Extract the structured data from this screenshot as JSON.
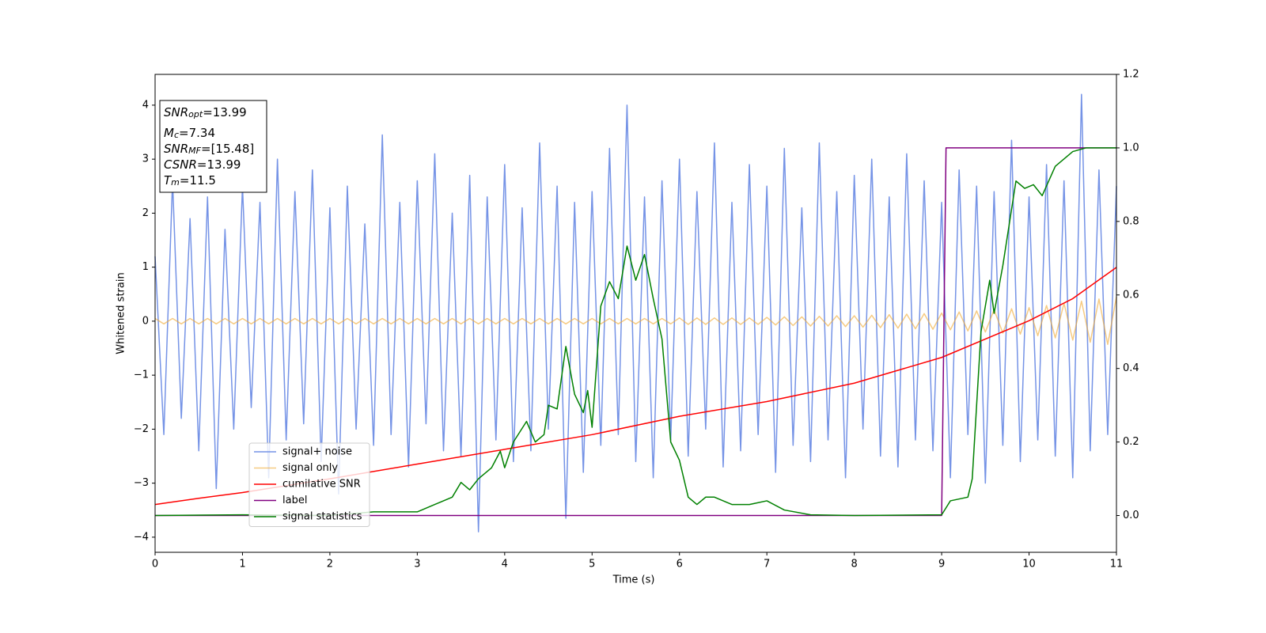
{
  "chart_data": {
    "type": "line",
    "xlabel": "Time (s)",
    "ylabel": "Whitened strain",
    "xlim": [
      0,
      11
    ],
    "ylim": [
      -4.28,
      4.57
    ],
    "y2lim": [
      -0.1,
      1.2
    ],
    "xticks": [
      0,
      1,
      2,
      3,
      4,
      5,
      6,
      7,
      8,
      9,
      10,
      11
    ],
    "yticks": [
      {
        "value": -4,
        "label": "−4"
      },
      {
        "value": -3,
        "label": "−3"
      },
      {
        "value": -2,
        "label": "−2"
      },
      {
        "value": -1,
        "label": "−1"
      },
      0,
      1,
      2,
      3,
      4
    ],
    "y2ticks": [
      {
        "value": 0,
        "label": "0.0"
      },
      0.2,
      0.4,
      0.6,
      0.8,
      {
        "value": 1,
        "label": "1.0"
      },
      1.2
    ],
    "legend": "lower left",
    "annotations": [
      {
        "symbol": "SNR",
        "sub": "opt",
        "text": "=13.99"
      },
      {
        "symbol": "M",
        "sub": "c",
        "text": "=7.34"
      },
      {
        "symbol": "SNR",
        "sub": "MF",
        "text": "=[15.48]"
      },
      {
        "symbol": "CSNR",
        "text": "=13.99"
      },
      {
        "symbol": "T",
        "sub": "m",
        "text": "=11.5"
      }
    ],
    "series": [
      {
        "name": "signal+ noise",
        "color": "#7593e6",
        "x": [
          0,
          0.1,
          0.2,
          0.3,
          0.4,
          0.5,
          0.6,
          0.7,
          0.8,
          0.9,
          1,
          1.1,
          1.2,
          1.3,
          1.4,
          1.5,
          1.6,
          1.7,
          1.8,
          1.9,
          2,
          2.1,
          2.2,
          2.3,
          2.4,
          2.5,
          2.6,
          2.7,
          2.8,
          2.9,
          3,
          3.1,
          3.2,
          3.3,
          3.4,
          3.5,
          3.6,
          3.7,
          3.8,
          3.9,
          4,
          4.1,
          4.2,
          4.3,
          4.4,
          4.5,
          4.6,
          4.7,
          4.8,
          4.9,
          5,
          5.1,
          5.2,
          5.3,
          5.4,
          5.5,
          5.6,
          5.7,
          5.8,
          5.9,
          6,
          6.1,
          6.2,
          6.3,
          6.4,
          6.5,
          6.6,
          6.7,
          6.8,
          6.9,
          7,
          7.1,
          7.2,
          7.3,
          7.4,
          7.5,
          7.6,
          7.7,
          7.8,
          7.9,
          8,
          8.1,
          8.2,
          8.3,
          8.4,
          8.5,
          8.6,
          8.7,
          8.8,
          8.9,
          9,
          9.1,
          9.2,
          9.3,
          9.4,
          9.5,
          9.6,
          9.7,
          9.8,
          9.9,
          10,
          10.1,
          10.2,
          10.3,
          10.4,
          10.5,
          10.6,
          10.7,
          10.8,
          10.9,
          11
        ],
        "values": [
          1.2,
          -2.1,
          2.6,
          -1.8,
          1.9,
          -2.4,
          2.3,
          -3.1,
          1.7,
          -2.0,
          2.5,
          -1.6,
          2.2,
          -2.9,
          3.0,
          -2.2,
          2.4,
          -1.9,
          2.8,
          -2.6,
          2.1,
          -3.2,
          2.5,
          -2.0,
          1.8,
          -2.3,
          3.45,
          -2.1,
          2.2,
          -2.7,
          2.6,
          -1.9,
          3.1,
          -2.4,
          2.0,
          -2.5,
          2.7,
          -3.9,
          2.3,
          -2.2,
          2.9,
          -2.6,
          2.1,
          -2.4,
          3.3,
          -2.0,
          2.5,
          -3.65,
          2.2,
          -2.8,
          2.4,
          -2.3,
          3.2,
          -2.1,
          4.0,
          -2.6,
          2.3,
          -2.9,
          2.6,
          -2.2,
          3.0,
          -2.5,
          2.4,
          -2.0,
          3.3,
          -2.7,
          2.2,
          -2.4,
          2.9,
          -2.1,
          2.5,
          -2.8,
          3.2,
          -2.3,
          2.1,
          -2.6,
          3.3,
          -2.2,
          2.4,
          -2.9,
          2.7,
          -2.0,
          3.0,
          -2.5,
          2.3,
          -2.7,
          3.1,
          -2.2,
          2.6,
          -2.4,
          2.2,
          -2.9,
          2.8,
          -2.1,
          2.5,
          -3.0,
          2.4,
          -2.3,
          3.35,
          -2.6,
          2.3,
          -2.2,
          2.9,
          -2.5,
          2.6,
          -2.9,
          4.2,
          -2.4,
          2.8,
          -2.1,
          2.5
        ]
      },
      {
        "name": "signal only",
        "color": "#f0a830",
        "x": [
          0,
          0.1,
          0.2,
          0.3,
          0.4,
          0.5,
          0.6,
          0.7,
          0.8,
          0.9,
          1,
          1.1,
          1.2,
          1.3,
          1.4,
          1.5,
          1.6,
          1.7,
          1.8,
          1.9,
          2,
          2.1,
          2.2,
          2.3,
          2.4,
          2.5,
          2.6,
          2.7,
          2.8,
          2.9,
          3,
          3.1,
          3.2,
          3.3,
          3.4,
          3.5,
          3.6,
          3.7,
          3.8,
          3.9,
          4,
          4.1,
          4.2,
          4.3,
          4.4,
          4.5,
          4.6,
          4.7,
          4.8,
          4.9,
          5,
          5.1,
          5.2,
          5.3,
          5.4,
          5.5,
          5.6,
          5.7,
          5.8,
          5.9,
          6,
          6.1,
          6.2,
          6.3,
          6.4,
          6.5,
          6.6,
          6.7,
          6.8,
          6.9,
          7,
          7.1,
          7.2,
          7.3,
          7.4,
          7.5,
          7.6,
          7.7,
          7.8,
          7.9,
          8,
          8.1,
          8.2,
          8.3,
          8.4,
          8.5,
          8.6,
          8.7,
          8.8,
          8.9,
          9,
          9.1,
          9.2,
          9.3,
          9.4,
          9.5,
          9.6,
          9.7,
          9.8,
          9.9,
          10,
          10.1,
          10.2,
          10.3,
          10.4,
          10.5,
          10.6,
          10.7,
          10.8,
          10.9,
          11
        ],
        "values": [
          0.05,
          -0.05,
          0.05,
          -0.05,
          0.05,
          -0.05,
          0.05,
          -0.05,
          0.05,
          -0.05,
          0.05,
          -0.05,
          0.05,
          -0.05,
          0.05,
          -0.05,
          0.05,
          -0.05,
          0.05,
          -0.05,
          0.05,
          -0.05,
          0.05,
          -0.05,
          0.05,
          -0.05,
          0.05,
          -0.05,
          0.05,
          -0.05,
          0.05,
          -0.05,
          0.05,
          -0.05,
          0.05,
          -0.05,
          0.05,
          -0.05,
          0.05,
          -0.05,
          0.05,
          -0.05,
          0.05,
          -0.05,
          0.05,
          -0.05,
          0.05,
          -0.05,
          0.05,
          -0.05,
          0.05,
          -0.05,
          0.05,
          -0.05,
          0.05,
          -0.05,
          0.05,
          -0.05,
          0.05,
          -0.05,
          0.06,
          -0.06,
          0.06,
          -0.06,
          0.06,
          -0.06,
          0.06,
          -0.06,
          0.06,
          -0.06,
          0.07,
          -0.07,
          0.08,
          -0.08,
          0.08,
          -0.09,
          0.09,
          -0.09,
          0.1,
          -0.1,
          0.1,
          -0.11,
          0.11,
          -0.12,
          0.12,
          -0.13,
          0.13,
          -0.14,
          0.14,
          -0.15,
          0.15,
          -0.16,
          0.17,
          -0.18,
          0.19,
          -0.2,
          0.21,
          -0.22,
          0.23,
          -0.24,
          0.25,
          -0.27,
          0.29,
          -0.31,
          0.33,
          -0.35,
          0.37,
          -0.39,
          0.41,
          -0.43,
          0.45
        ]
      },
      {
        "name": "cumilative SNR",
        "color": "#ff0000",
        "axis": "y2",
        "x": [
          0,
          0.5,
          1,
          2,
          3,
          4,
          5,
          6,
          7,
          8,
          9,
          10,
          10.5,
          11
        ],
        "values": [
          0.03,
          0.047,
          0.0625,
          0.1,
          0.14,
          0.18,
          0.22,
          0.27,
          0.31,
          0.36,
          0.43,
          0.53,
          0.59,
          0.675
        ]
      },
      {
        "name": "label",
        "color": "#800080",
        "axis": "y2",
        "x": [
          0,
          9.0,
          9.05,
          11
        ],
        "values": [
          0,
          0,
          1,
          1
        ]
      },
      {
        "name": "signal statistics",
        "color": "#008000",
        "axis": "y2",
        "x": [
          0,
          1,
          2,
          2.5,
          3,
          3.2,
          3.4,
          3.5,
          3.6,
          3.7,
          3.85,
          3.95,
          4.0,
          4.1,
          4.25,
          4.35,
          4.45,
          4.5,
          4.6,
          4.7,
          4.8,
          4.9,
          4.95,
          5.0,
          5.1,
          5.2,
          5.3,
          5.4,
          5.5,
          5.6,
          5.7,
          5.8,
          5.9,
          6.0,
          6.1,
          6.2,
          6.3,
          6.4,
          6.6,
          6.8,
          7.0,
          7.2,
          7.5,
          8,
          9,
          9.1,
          9.3,
          9.35,
          9.45,
          9.55,
          9.6,
          9.7,
          9.85,
          9.95,
          10.05,
          10.15,
          10.3,
          10.5,
          10.65,
          11
        ],
        "values": [
          0,
          0.002,
          0,
          0.01,
          0.01,
          0.03,
          0.05,
          0.09,
          0.07,
          0.1,
          0.13,
          0.175,
          0.13,
          0.2,
          0.256,
          0.2,
          0.22,
          0.3,
          0.29,
          0.46,
          0.33,
          0.28,
          0.34,
          0.24,
          0.57,
          0.636,
          0.59,
          0.733,
          0.64,
          0.71,
          0.59,
          0.48,
          0.2,
          0.15,
          0.05,
          0.03,
          0.05,
          0.05,
          0.03,
          0.03,
          0.04,
          0.015,
          0.002,
          0,
          0.002,
          0.04,
          0.05,
          0.1,
          0.5,
          0.64,
          0.55,
          0.68,
          0.91,
          0.89,
          0.9,
          0.87,
          0.95,
          0.99,
          1,
          1
        ]
      }
    ]
  }
}
